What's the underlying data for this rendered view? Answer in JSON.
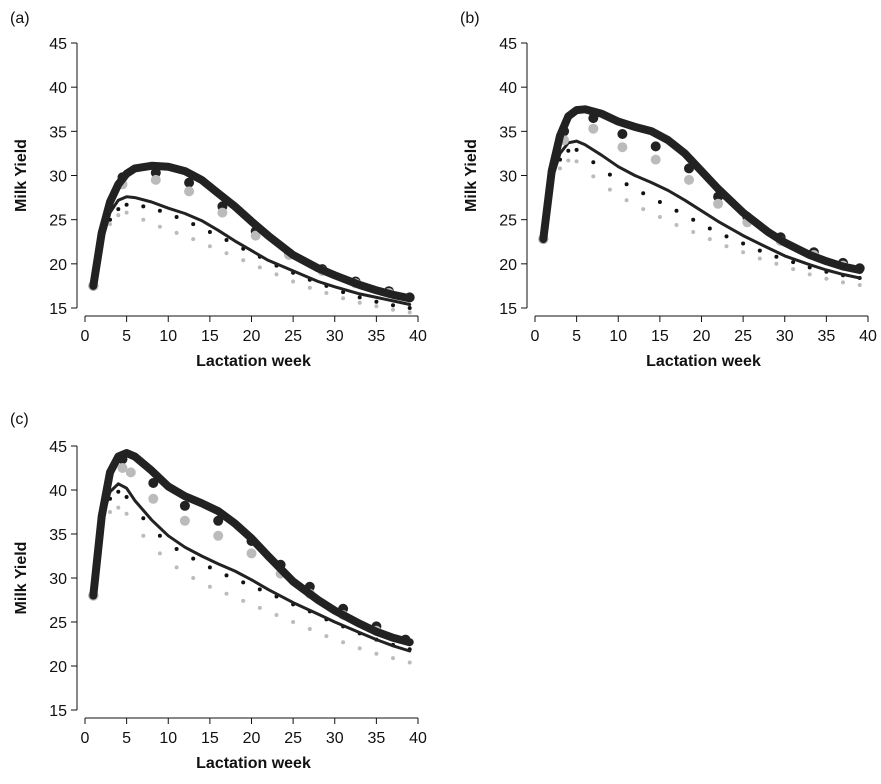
{
  "chart_data": [
    {
      "type": "line",
      "panel_label": "(a)",
      "xlabel": "Lactation week",
      "ylabel": "Milk Yield",
      "xlim": [
        0,
        40
      ],
      "ylim": [
        15,
        45
      ],
      "xticks": [
        0,
        5,
        10,
        15,
        20,
        25,
        30,
        35,
        40
      ],
      "yticks": [
        15,
        20,
        25,
        30,
        35,
        40,
        45
      ],
      "grid": false,
      "series": [
        {
          "style": "thick-line",
          "color": "#222222",
          "x": [
            1,
            2,
            3,
            4,
            5,
            6,
            8,
            10,
            12,
            14,
            16,
            18,
            20,
            22,
            25,
            28,
            30,
            33,
            35,
            37,
            39
          ],
          "y": [
            17.5,
            23.5,
            27,
            29,
            30.2,
            30.8,
            31.1,
            31,
            30.5,
            29.5,
            28,
            26.5,
            24.8,
            23.2,
            21,
            19.5,
            18.7,
            17.6,
            17,
            16.5,
            16.1
          ]
        },
        {
          "style": "thin-line",
          "color": "#222222",
          "x": [
            1,
            2,
            3,
            4,
            5,
            6,
            8,
            10,
            12,
            14,
            16,
            18,
            20,
            22,
            25,
            28,
            30,
            33,
            35,
            37,
            39
          ],
          "y": [
            17.5,
            22.5,
            25.8,
            27.2,
            27.6,
            27.5,
            27,
            26.3,
            25.7,
            24.9,
            23.8,
            22.6,
            21.5,
            20.4,
            19.2,
            18,
            17.4,
            16.6,
            16.2,
            15.8,
            15.4
          ]
        },
        {
          "style": "large-dots",
          "color": "#222222",
          "x": [
            1,
            4.5,
            8.5,
            12.5,
            16.5,
            20.5,
            24.5,
            28.5,
            32.5,
            36.5,
            39
          ],
          "y": [
            17.5,
            29.8,
            30.3,
            29.2,
            26.5,
            23.7,
            21.2,
            19.4,
            18,
            16.9,
            16.2
          ]
        },
        {
          "style": "large-dots",
          "color": "#bbbbbb",
          "x": [
            1,
            4.5,
            8.5,
            12.5,
            16.5,
            20.5,
            24.5,
            28.5,
            32.5,
            36.5
          ],
          "y": [
            17.5,
            29,
            29.5,
            28.2,
            25.8,
            23.2,
            21,
            19.2,
            17.8,
            16.7
          ]
        },
        {
          "style": "small-dots",
          "color": "#111111",
          "x": [
            1,
            2,
            3,
            4,
            5,
            7,
            9,
            11,
            13,
            15,
            17,
            19,
            21,
            23,
            25,
            27,
            29,
            31,
            33,
            35,
            37,
            39
          ],
          "y": [
            17.5,
            22.5,
            25,
            26.2,
            26.7,
            26.5,
            26,
            25.3,
            24.5,
            23.6,
            22.7,
            21.7,
            20.8,
            19.8,
            19,
            18.2,
            17.5,
            16.8,
            16.2,
            15.7,
            15.3,
            15
          ]
        },
        {
          "style": "small-dots",
          "color": "#bbbbbb",
          "x": [
            1,
            2,
            3,
            4,
            5,
            7,
            9,
            11,
            13,
            15,
            17,
            19,
            21,
            23,
            25,
            27,
            29,
            31,
            33,
            35,
            37,
            39
          ],
          "y": [
            17.5,
            22,
            24.5,
            25.5,
            25.8,
            25,
            24.2,
            23.5,
            22.8,
            22,
            21.2,
            20.4,
            19.6,
            18.8,
            18,
            17.3,
            16.7,
            16.1,
            15.6,
            15.2,
            14.8,
            14.5
          ]
        }
      ]
    },
    {
      "type": "line",
      "panel_label": "(b)",
      "xlabel": "Lactation week",
      "ylabel": "Milk Yield",
      "xlim": [
        0,
        40
      ],
      "ylim": [
        15,
        45
      ],
      "xticks": [
        0,
        5,
        10,
        15,
        20,
        25,
        30,
        35,
        40
      ],
      "yticks": [
        15,
        20,
        25,
        30,
        35,
        40,
        45
      ],
      "grid": false,
      "series": [
        {
          "style": "thick-line",
          "color": "#222222",
          "x": [
            1,
            2,
            3,
            4,
            5,
            6,
            8,
            10,
            12,
            14,
            16,
            18,
            20,
            22,
            25,
            28,
            30,
            33,
            35,
            37,
            39
          ],
          "y": [
            22.8,
            30.5,
            34.5,
            36.7,
            37.4,
            37.5,
            37,
            36.1,
            35.5,
            35,
            34,
            32.5,
            30.5,
            28.5,
            25.8,
            23.6,
            22.4,
            21,
            20.3,
            19.7,
            19.3
          ]
        },
        {
          "style": "thin-line",
          "color": "#222222",
          "x": [
            1,
            2,
            3,
            4,
            5,
            6,
            8,
            10,
            12,
            14,
            16,
            18,
            20,
            22,
            25,
            28,
            30,
            33,
            35,
            37,
            39
          ],
          "y": [
            22.8,
            29.5,
            32.5,
            33.7,
            33.9,
            33.5,
            32.3,
            31,
            30,
            29.2,
            28.3,
            27.2,
            26,
            24.8,
            23.2,
            21.8,
            20.9,
            19.9,
            19.3,
            18.8,
            18.4
          ]
        },
        {
          "style": "large-dots",
          "color": "#222222",
          "x": [
            1,
            3.5,
            7,
            10.5,
            14.5,
            18.5,
            22,
            25.5,
            29.5,
            33.5,
            37,
            39
          ],
          "y": [
            22.8,
            35,
            36.5,
            34.7,
            33.3,
            30.8,
            27.6,
            25.3,
            23,
            21.3,
            20.1,
            19.5
          ]
        },
        {
          "style": "large-dots",
          "color": "#bbbbbb",
          "x": [
            1,
            3.5,
            7,
            10.5,
            14.5,
            18.5,
            22,
            25.5,
            29.5,
            33.5,
            37
          ],
          "y": [
            22.8,
            34,
            35.3,
            33.2,
            31.8,
            29.5,
            26.8,
            24.7,
            22.6,
            21,
            19.8
          ]
        },
        {
          "style": "small-dots",
          "color": "#111111",
          "x": [
            1,
            2,
            3,
            4,
            5,
            7,
            9,
            11,
            13,
            15,
            17,
            19,
            21,
            23,
            25,
            27,
            29,
            31,
            33,
            35,
            37,
            39
          ],
          "y": [
            22.8,
            29,
            31.8,
            32.8,
            32.9,
            31.5,
            30.1,
            29,
            28,
            27,
            26,
            25,
            24,
            23.1,
            22.3,
            21.5,
            20.8,
            20.2,
            19.6,
            19.1,
            18.7,
            18.4
          ]
        },
        {
          "style": "small-dots",
          "color": "#bbbbbb",
          "x": [
            1,
            2,
            3,
            4,
            5,
            7,
            9,
            11,
            13,
            15,
            17,
            19,
            21,
            23,
            25,
            27,
            29,
            31,
            33,
            35,
            37,
            39
          ],
          "y": [
            22.8,
            28.5,
            30.8,
            31.7,
            31.6,
            29.9,
            28.4,
            27.2,
            26.2,
            25.3,
            24.4,
            23.6,
            22.8,
            22,
            21.3,
            20.6,
            20,
            19.4,
            18.8,
            18.3,
            17.9,
            17.6
          ]
        }
      ]
    },
    {
      "type": "line",
      "panel_label": "(c)",
      "xlabel": "Lactation week",
      "ylabel": "Milk Yield",
      "xlim": [
        0,
        40
      ],
      "ylim": [
        15,
        45
      ],
      "xticks": [
        0,
        5,
        10,
        15,
        20,
        25,
        30,
        35,
        40
      ],
      "yticks": [
        15,
        20,
        25,
        30,
        35,
        40,
        45
      ],
      "grid": false,
      "series": [
        {
          "style": "thick-line",
          "color": "#222222",
          "x": [
            1,
            2,
            3,
            4,
            5,
            6,
            8,
            10,
            12,
            14,
            16,
            18,
            20,
            22,
            25,
            28,
            30,
            33,
            35,
            37,
            39
          ],
          "y": [
            28,
            37,
            42,
            43.8,
            44.2,
            43.8,
            42.2,
            40.4,
            39.3,
            38.5,
            37.6,
            36.2,
            34.5,
            32.5,
            29.6,
            27.5,
            26.3,
            24.8,
            23.9,
            23.2,
            22.7
          ]
        },
        {
          "style": "thin-line",
          "color": "#222222",
          "x": [
            1,
            2,
            3,
            4,
            5,
            6,
            8,
            10,
            12,
            14,
            16,
            18,
            20,
            22,
            25,
            28,
            30,
            33,
            35,
            37,
            39
          ],
          "y": [
            28,
            36.5,
            39.8,
            40.7,
            40.2,
            38.8,
            36.6,
            34.8,
            33.5,
            32.5,
            31.6,
            30.8,
            29.8,
            28.7,
            27.2,
            25.9,
            25,
            23.8,
            23,
            22.3,
            21.7
          ]
        },
        {
          "style": "large-dots",
          "color": "#222222",
          "x": [
            1,
            4.5,
            8.2,
            12,
            16,
            20,
            23.5,
            27,
            31,
            35,
            38.5
          ],
          "y": [
            28,
            43.5,
            40.8,
            38.2,
            36.5,
            34.2,
            31.5,
            29,
            26.5,
            24.5,
            23
          ]
        },
        {
          "style": "large-dots",
          "color": "#bbbbbb",
          "x": [
            1,
            4.5,
            5.5,
            8.2,
            12,
            16,
            20,
            23.5,
            27,
            31,
            35
          ],
          "y": [
            28,
            42.5,
            42,
            39,
            36.5,
            34.8,
            32.8,
            30.5,
            28.2,
            25.8,
            24
          ]
        },
        {
          "style": "small-dots",
          "color": "#111111",
          "x": [
            1,
            2,
            3,
            4,
            5,
            7,
            9,
            11,
            13,
            15,
            17,
            19,
            21,
            23,
            25,
            27,
            29,
            31,
            33,
            35,
            37,
            39
          ],
          "y": [
            28,
            35.8,
            39,
            39.8,
            39.2,
            36.8,
            34.8,
            33.3,
            32.2,
            31.2,
            30.3,
            29.5,
            28.7,
            27.9,
            27,
            26.2,
            25.3,
            24.5,
            23.7,
            23,
            22.4,
            21.9
          ]
        },
        {
          "style": "small-dots",
          "color": "#bbbbbb",
          "x": [
            1,
            2,
            3,
            4,
            5,
            7,
            9,
            11,
            13,
            15,
            17,
            19,
            21,
            23,
            25,
            27,
            29,
            31,
            33,
            35,
            37,
            39
          ],
          "y": [
            28,
            35,
            37.5,
            38,
            37.3,
            34.8,
            32.8,
            31.2,
            30,
            29,
            28.2,
            27.4,
            26.6,
            25.8,
            25,
            24.2,
            23.4,
            22.7,
            22,
            21.4,
            20.9,
            20.4
          ]
        }
      ]
    }
  ]
}
